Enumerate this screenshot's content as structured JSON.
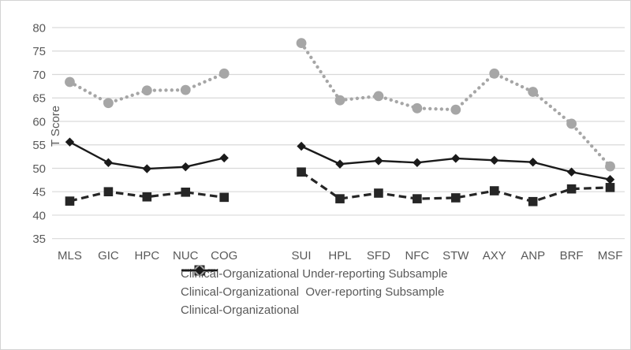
{
  "figure": {
    "background_color": "#ffffff",
    "frame_border_color": "#d3d3d3",
    "gridline_color": "#d9d9d9",
    "axis_text_color": "#595959"
  },
  "chart_data": {
    "type": "line",
    "title": "",
    "xlabel": "",
    "ylabel": "T Score",
    "ylim": [
      35,
      80
    ],
    "yticks": [
      35,
      40,
      45,
      50,
      55,
      60,
      65,
      70,
      75,
      80
    ],
    "grid": "horizontal-only",
    "legend_position": "bottom-center",
    "categories": [
      "MLS",
      "GIC",
      "HPC",
      "NUC",
      "COG",
      "SUI",
      "HPL",
      "SFD",
      "NFC",
      "STW",
      "AXY",
      "ANP",
      "BRF",
      "MSF"
    ],
    "gap_after_index": 4,
    "gap_after_category": "COG",
    "series": [
      {
        "name": "Clinical-Organizational Under-reporting Subsample",
        "line_style": "dashed",
        "marker": "square",
        "color": "#262626",
        "values": [
          43.0,
          45.0,
          43.9,
          44.9,
          43.8,
          49.2,
          43.5,
          44.7,
          43.5,
          43.7,
          45.2,
          42.9,
          45.6,
          45.9
        ]
      },
      {
        "name": "Clinical-Organizational  Over-reporting Subsample",
        "line_style": "dotted",
        "marker": "circle",
        "color": "#a6a6a6",
        "values": [
          68.4,
          63.9,
          66.6,
          66.7,
          70.2,
          76.7,
          64.5,
          65.4,
          62.8,
          62.5,
          70.2,
          66.3,
          59.5,
          50.4
        ]
      },
      {
        "name": "Clinical-Organizational",
        "line_style": "solid",
        "marker": "diamond",
        "color": "#1a1a1a",
        "values": [
          55.6,
          51.2,
          49.9,
          50.3,
          52.2,
          54.7,
          50.9,
          51.6,
          51.2,
          52.1,
          51.7,
          51.3,
          49.2,
          47.6
        ]
      }
    ]
  }
}
